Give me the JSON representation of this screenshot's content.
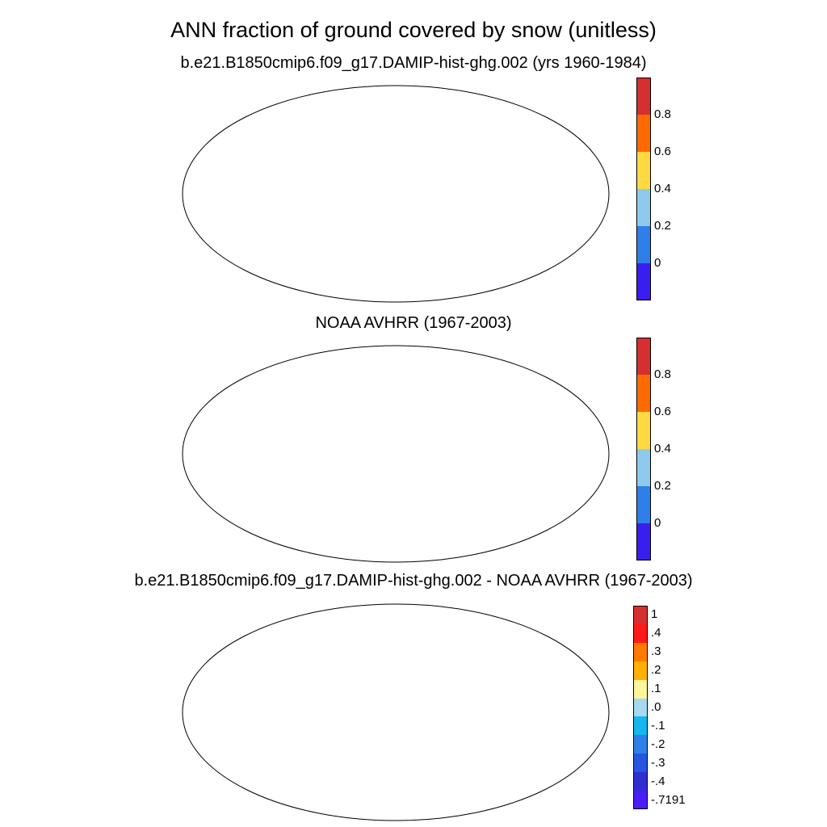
{
  "title": "ANN fraction of ground covered by snow (unitless)",
  "panels": [
    {
      "id": "model",
      "title": "b.e21.B1850cmip6.f09_g17.DAMIP-hist-ghg.002 (yrs 1960-1984)",
      "colorbar": {
        "labels": [
          "0.8",
          "0.6",
          "0.4",
          "0.2",
          "0"
        ],
        "colors": [
          "#d62f2f",
          "#ff6a00",
          "#ffd93f",
          "#8fc9ee",
          "#2f7fe8",
          "#3a1ef0"
        ]
      }
    },
    {
      "id": "obs",
      "title": "NOAA AVHRR (1967-2003)",
      "colorbar": {
        "labels": [
          "0.8",
          "0.6",
          "0.4",
          "0.2",
          "0"
        ],
        "colors": [
          "#d62f2f",
          "#ff6a00",
          "#ffd93f",
          "#8fc9ee",
          "#2f7fe8",
          "#3a1ef0"
        ]
      }
    },
    {
      "id": "diff",
      "title": "b.e21.B1850cmip6.f09_g17.DAMIP-hist-ghg.002 - NOAA AVHRR (1967-2003)",
      "colorbar": {
        "labels": [
          "1",
          ".4",
          ".3",
          ".2",
          ".1",
          ".0",
          "-.1",
          "-.2",
          "-.3",
          "-.4",
          "-.7191"
        ],
        "colors": [
          "#d62f2f",
          "#ff1a1a",
          "#ff7a00",
          "#ffb000",
          "#fff59a",
          "#a8d8ef",
          "#15b7ee",
          "#2f7fe8",
          "#2656e0",
          "#2f2fd0",
          "#4a1ef7"
        ]
      }
    }
  ]
}
